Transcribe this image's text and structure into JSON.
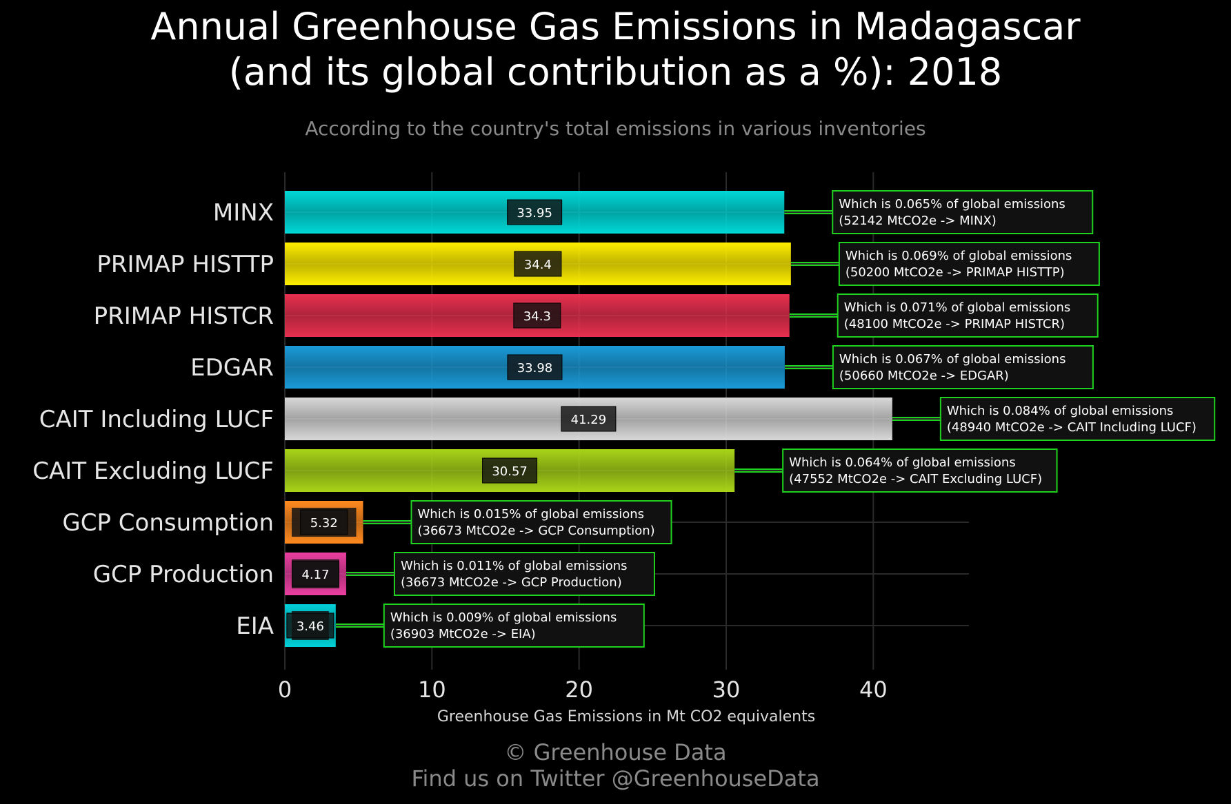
{
  "chart_data": {
    "type": "bar",
    "orientation": "horizontal",
    "title_lines": [
      "Annual Greenhouse Gas Emissions in Madagascar",
      "(and its global contribution as a %): 2018"
    ],
    "subtitle": "According to the country's total emissions in various inventories",
    "xlabel": "Greenhouse Gas Emissions in Mt CO2 equivalents",
    "ylabel": "",
    "xlim": [
      0,
      46.5
    ],
    "xticks": [
      0,
      10,
      20,
      30,
      40
    ],
    "grid": true,
    "categories": [
      "MINX",
      "PRIMAP HISTTP",
      "PRIMAP HISTCR",
      "EDGAR",
      "CAIT Including LUCF",
      "CAIT Excluding LUCF",
      "GCP Consumption",
      "GCP Production",
      "EIA"
    ],
    "values": [
      33.95,
      34.4,
      34.3,
      33.98,
      41.29,
      30.57,
      5.32,
      4.17,
      3.46
    ],
    "value_labels": [
      "33.95",
      "34.4",
      "34.3",
      "33.98",
      "41.29",
      "30.57",
      "5.32",
      "4.17",
      "3.46"
    ],
    "colors": [
      "#00d8d8",
      "#ffee00",
      "#e8304f",
      "#1a9bd8",
      "#d8d8d8",
      "#a8d418",
      "#ff8a1f",
      "#ea3fa0",
      "#00d0d8"
    ],
    "annotations": [
      {
        "line1": "Which is 0.065% of global emissions",
        "line2": "(52142 MtCO2e -> MINX)"
      },
      {
        "line1": "Which is 0.069% of global emissions",
        "line2": "(50200 MtCO2e -> PRIMAP HISTTP)"
      },
      {
        "line1": "Which is 0.071% of global emissions",
        "line2": "(48100 MtCO2e -> PRIMAP HISTCR)"
      },
      {
        "line1": "Which is 0.067% of global emissions",
        "line2": "(50660 MtCO2e -> EDGAR)"
      },
      {
        "line1": "Which is 0.084% of global emissions",
        "line2": "(48940 MtCO2e -> CAIT Including LUCF)"
      },
      {
        "line1": "Which is 0.064% of global emissions",
        "line2": "(47552 MtCO2e -> CAIT Excluding LUCF)"
      },
      {
        "line1": "Which is 0.015% of global emissions",
        "line2": "(36673 MtCO2e -> GCP Consumption)"
      },
      {
        "line1": "Which is 0.011% of global emissions",
        "line2": "(36673 MtCO2e -> GCP Production)"
      },
      {
        "line1": "Which is 0.009% of global emissions",
        "line2": "(36903 MtCO2e -> EIA)"
      }
    ],
    "annotation_color": "#1fd21f",
    "grid_color": "#2a2a2a"
  },
  "credits": {
    "line1": "© Greenhouse Data",
    "line2": "Find us on Twitter @GreenhouseData"
  }
}
